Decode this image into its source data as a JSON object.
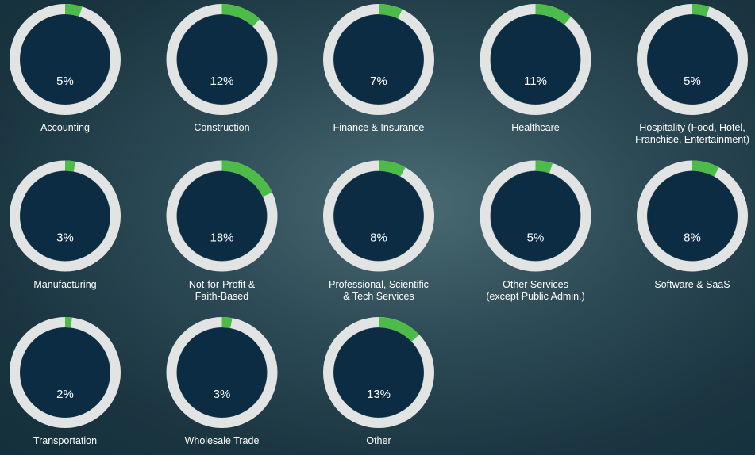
{
  "chart_data": {
    "type": "donut",
    "categories": [
      "Accounting",
      "Construction",
      "Finance & Insurance",
      "Healthcare",
      "Hospitality (Food, Hotel,\nFranchise, Entertainment)",
      "Manufacturing",
      "Not-for-Profit &\nFaith-Based",
      "Professional, Scientific\n& Tech Services",
      "Other Services\n(except Public Admin.)",
      "Software & SaaS",
      "Transportation",
      "Wholesale Trade",
      "Other"
    ],
    "values": [
      5,
      12,
      7,
      11,
      5,
      3,
      18,
      8,
      5,
      8,
      2,
      3,
      13
    ],
    "value_labels": [
      "5%",
      "12%",
      "7%",
      "11%",
      "5%",
      "3%",
      "18%",
      "8%",
      "5%",
      "8%",
      "2%",
      "3%",
      "13%"
    ],
    "ylim": [
      0,
      100
    ],
    "color": "#4dbb48"
  }
}
